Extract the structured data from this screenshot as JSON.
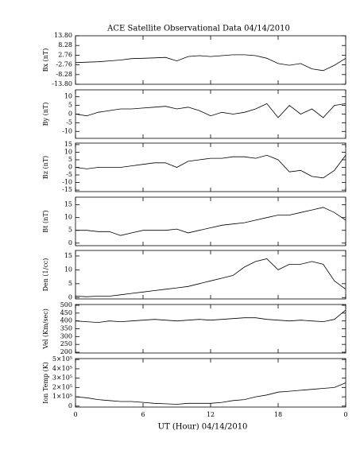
{
  "title": "ACE Satellite Observational Data   04/14/2010",
  "xlabel": "UT (Hour)   04/14/2010",
  "chart_data": [
    {
      "type": "line",
      "ylabel": "Bx (nT)",
      "color": "#000000",
      "x": [
        0,
        1,
        2,
        3,
        4,
        5,
        6,
        7,
        8,
        9,
        10,
        11,
        12,
        13,
        14,
        15,
        16,
        17,
        18,
        19,
        20,
        21,
        22,
        23,
        24
      ],
      "values": [
        -1.5,
        -1.2,
        -1,
        -0.5,
        0,
        0.8,
        1,
        1.2,
        1.5,
        -0.5,
        2,
        2.5,
        2,
        2.5,
        3,
        3,
        2.5,
        1,
        -2,
        -3,
        -2,
        -5,
        -6,
        -3,
        1
      ],
      "xlim": [
        0,
        24
      ],
      "xticks": [
        0,
        6,
        12,
        18,
        {
          "value": 24,
          "label": "0"
        }
      ],
      "ylim": [
        -13.8,
        13.8
      ],
      "yticks": [
        {
          "value": 13.8,
          "label": "13.80"
        },
        8.28,
        2.76,
        -2.76,
        -8.28,
        {
          "value": -13.8,
          "label": "-13.80"
        }
      ]
    },
    {
      "type": "line",
      "ylabel": "By (nT)",
      "color": "#000000",
      "x": [
        0,
        1,
        2,
        3,
        4,
        5,
        6,
        7,
        8,
        9,
        10,
        11,
        12,
        13,
        14,
        15,
        16,
        17,
        18,
        19,
        20,
        21,
        22,
        23,
        24
      ],
      "values": [
        0,
        -1,
        1,
        2,
        3,
        3,
        3.5,
        4,
        4.5,
        3,
        4,
        2,
        -1,
        1,
        0,
        1,
        3,
        6,
        -2,
        5,
        0,
        3,
        -2,
        5,
        6
      ],
      "xlim": [
        0,
        24
      ],
      "xticks": [
        0,
        6,
        12,
        18,
        {
          "value": 24,
          "label": "0"
        }
      ],
      "ylim": [
        -14,
        14
      ],
      "yticks": [
        10,
        5,
        0,
        -5,
        -10
      ]
    },
    {
      "type": "line",
      "ylabel": "Bz (nT)",
      "color": "#000000",
      "x": [
        0,
        1,
        2,
        3,
        4,
        5,
        6,
        7,
        8,
        9,
        10,
        11,
        12,
        13,
        14,
        15,
        16,
        17,
        18,
        19,
        20,
        21,
        22,
        23,
        24
      ],
      "values": [
        0,
        -1,
        0,
        0,
        0,
        1,
        2,
        3,
        3,
        0,
        4,
        5,
        6,
        6,
        7,
        7,
        6,
        8,
        5,
        -3,
        -2,
        -6,
        -7,
        -2,
        8
      ],
      "xlim": [
        0,
        24
      ],
      "xticks": [
        0,
        6,
        12,
        18,
        {
          "value": 24,
          "label": "0"
        }
      ],
      "ylim": [
        -16,
        16
      ],
      "yticks": [
        15,
        10,
        5,
        0,
        -5,
        -10,
        -15
      ]
    },
    {
      "type": "line",
      "ylabel": "Bt (nT)",
      "color": "#000000",
      "x": [
        0,
        1,
        2,
        3,
        4,
        5,
        6,
        7,
        8,
        9,
        10,
        11,
        12,
        13,
        14,
        15,
        16,
        17,
        18,
        19,
        20,
        21,
        22,
        23,
        24
      ],
      "values": [
        5,
        5,
        4.5,
        4.5,
        3,
        4,
        5,
        5,
        5,
        5.5,
        4,
        5,
        6,
        7,
        7.5,
        8,
        9,
        10,
        11,
        11,
        12,
        13,
        14,
        12,
        9
      ],
      "xlim": [
        0,
        24
      ],
      "xticks": [
        0,
        6,
        12,
        18,
        {
          "value": 24,
          "label": "0"
        }
      ],
      "ylim": [
        -1,
        18
      ],
      "yticks": [
        0,
        5,
        10,
        15
      ]
    },
    {
      "type": "line",
      "ylabel": "Den (1/cc)",
      "color": "#000000",
      "x": [
        0,
        1,
        2,
        3,
        4,
        5,
        6,
        7,
        8,
        9,
        10,
        11,
        12,
        13,
        14,
        15,
        16,
        17,
        18,
        19,
        20,
        21,
        22,
        23,
        24
      ],
      "values": [
        0.5,
        0.3,
        0.5,
        0.5,
        1,
        1.5,
        2,
        2.5,
        3,
        3.5,
        4,
        5,
        6,
        7,
        8,
        11,
        13,
        14,
        10,
        12,
        12,
        13,
        12,
        6,
        3
      ],
      "xlim": [
        0,
        24
      ],
      "xticks": [
        0,
        6,
        12,
        18,
        {
          "value": 24,
          "label": "0"
        }
      ],
      "ylim": [
        -0.5,
        17
      ],
      "yticks": [
        0,
        5,
        10,
        15
      ]
    },
    {
      "type": "line",
      "ylabel": "Vel (Km/sec)",
      "color": "#000000",
      "x": [
        0,
        1,
        2,
        3,
        4,
        5,
        6,
        7,
        8,
        9,
        10,
        11,
        12,
        13,
        14,
        15,
        16,
        17,
        18,
        19,
        20,
        21,
        22,
        23,
        24
      ],
      "values": [
        400,
        395,
        390,
        400,
        395,
        400,
        405,
        410,
        405,
        400,
        405,
        410,
        405,
        410,
        415,
        420,
        420,
        410,
        405,
        400,
        405,
        400,
        395,
        410,
        470
      ],
      "xlim": [
        0,
        24
      ],
      "xticks": [
        0,
        6,
        12,
        18,
        {
          "value": 24,
          "label": "0"
        }
      ],
      "ylim": [
        195,
        505
      ],
      "yticks": [
        500,
        450,
        400,
        350,
        300,
        250,
        200
      ]
    },
    {
      "type": "line",
      "ylabel": "Ion Temp (K)",
      "color": "#000000",
      "x": [
        0,
        1,
        2,
        3,
        4,
        5,
        6,
        7,
        8,
        9,
        10,
        11,
        12,
        13,
        14,
        15,
        16,
        17,
        18,
        19,
        20,
        21,
        22,
        23,
        24
      ],
      "values": [
        100000,
        90000,
        70000,
        60000,
        50000,
        50000,
        40000,
        30000,
        25000,
        20000,
        30000,
        30000,
        30000,
        40000,
        60000,
        70000,
        100000,
        120000,
        150000,
        160000,
        170000,
        180000,
        190000,
        200000,
        250000
      ],
      "xlim": [
        0,
        24
      ],
      "xticks": [
        0,
        6,
        12,
        18,
        {
          "value": 24,
          "label": "0"
        }
      ],
      "ylim": [
        -10000,
        510000
      ],
      "yticks": [
        {
          "value": 500000,
          "label": "5×10⁵"
        },
        {
          "value": 400000,
          "label": "4×10⁵"
        },
        {
          "value": 300000,
          "label": "3×10⁵"
        },
        {
          "value": 200000,
          "label": "2×10⁵"
        },
        {
          "value": 100000,
          "label": "1×10⁵"
        },
        0
      ]
    }
  ]
}
